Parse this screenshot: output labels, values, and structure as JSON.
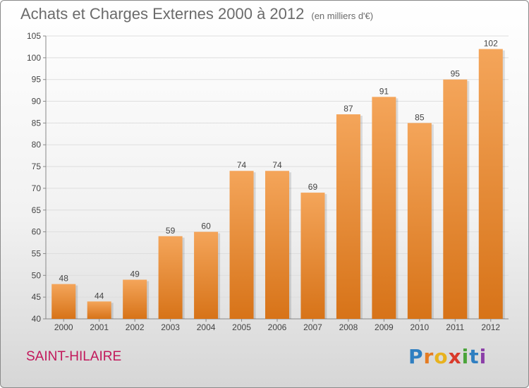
{
  "header": {
    "title": "Achats et Charges Externes 2000 à 2012",
    "unit": "(en milliers d'€)"
  },
  "footer": {
    "place": "SAINT-HILAIRE",
    "logo": {
      "letters": [
        "P",
        "r",
        "o",
        "x",
        "i",
        "t",
        "i"
      ],
      "colors": [
        "#2f7fc1",
        "#e57b22",
        "#e8b21e",
        "#d93a2b",
        "#4aa43a",
        "#2f7fc1",
        "#8b3ea8"
      ]
    }
  },
  "chart_data": {
    "type": "bar",
    "categories": [
      "2000",
      "2001",
      "2002",
      "2003",
      "2004",
      "2005",
      "2006",
      "2007",
      "2008",
      "2009",
      "2010",
      "2011",
      "2012"
    ],
    "values": [
      48,
      44,
      49,
      59,
      60,
      74,
      74,
      69,
      87,
      91,
      85,
      95,
      102
    ],
    "ylim": [
      40,
      105
    ],
    "yticks": [
      40,
      45,
      50,
      55,
      60,
      65,
      70,
      75,
      80,
      85,
      90,
      95,
      100,
      105
    ],
    "grid": true,
    "bar_color_top": "#f4a55a",
    "bar_color_bottom": "#d77318",
    "data_labels": true
  }
}
